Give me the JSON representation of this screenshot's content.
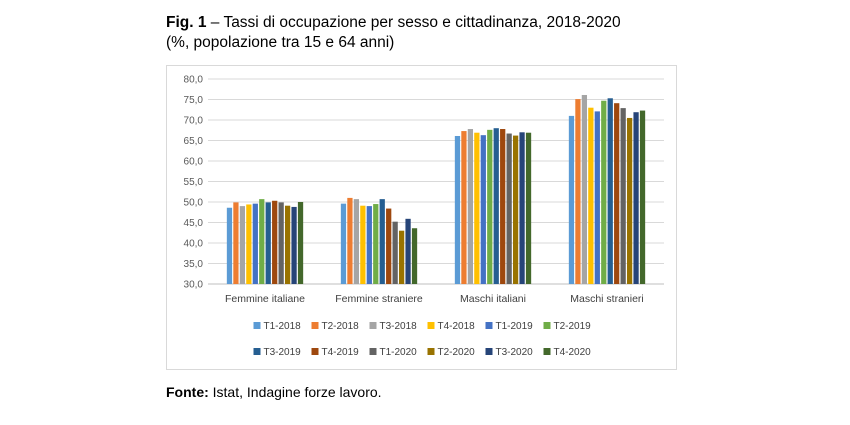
{
  "header": {
    "fig_label": "Fig. 1",
    "title_rest": " – Tassi di occupazione per sesso e cittadinanza, 2018-2020",
    "subtitle": "(%, popolazione tra 15 e 64 anni)"
  },
  "source": {
    "label": "Fonte:",
    "text": " Istat, Indagine forze lavoro."
  },
  "chart_data": {
    "type": "bar",
    "title": "Tassi di occupazione per sesso e cittadinanza, 2018-2020",
    "xlabel": "",
    "ylabel": "",
    "ylim": [
      30,
      80
    ],
    "y_ticks": [
      "30,0",
      "35,0",
      "40,0",
      "45,0",
      "50,0",
      "55,0",
      "60,0",
      "65,0",
      "70,0",
      "75,0",
      "80,0"
    ],
    "grid": true,
    "legend_position": "bottom",
    "categories": [
      "Femmine italiane",
      "Femmine straniere",
      "Maschi italiani",
      "Maschi stranieri"
    ],
    "series": [
      {
        "name": "T1-2018",
        "color": "#5B9BD5",
        "values": [
          48.6,
          49.6,
          66.1,
          71.0
        ]
      },
      {
        "name": "T2-2018",
        "color": "#ED7D31",
        "values": [
          49.9,
          51.0,
          67.3,
          75.1
        ]
      },
      {
        "name": "T3-2018",
        "color": "#A5A5A5",
        "values": [
          49.0,
          50.7,
          67.8,
          76.1
        ]
      },
      {
        "name": "T4-2018",
        "color": "#FFC000",
        "values": [
          49.4,
          49.1,
          66.9,
          73.0
        ]
      },
      {
        "name": "T1-2019",
        "color": "#4472C4",
        "values": [
          49.6,
          49.0,
          66.3,
          72.1
        ]
      },
      {
        "name": "T2-2019",
        "color": "#70AD47",
        "values": [
          50.7,
          49.5,
          67.6,
          74.7
        ]
      },
      {
        "name": "T3-2019",
        "color": "#255E91",
        "values": [
          49.9,
          50.7,
          68.0,
          75.3
        ]
      },
      {
        "name": "T4-2019",
        "color": "#9E480E",
        "values": [
          50.3,
          48.4,
          67.8,
          74.1
        ]
      },
      {
        "name": "T1-2020",
        "color": "#636363",
        "values": [
          49.9,
          45.2,
          66.7,
          72.9
        ]
      },
      {
        "name": "T2-2020",
        "color": "#997300",
        "values": [
          49.1,
          43.0,
          66.2,
          70.5
        ]
      },
      {
        "name": "T3-2020",
        "color": "#264478",
        "values": [
          48.8,
          45.9,
          67.0,
          71.9
        ]
      },
      {
        "name": "T4-2020",
        "color": "#43682B",
        "values": [
          50.0,
          43.6,
          66.9,
          72.3
        ]
      }
    ]
  }
}
